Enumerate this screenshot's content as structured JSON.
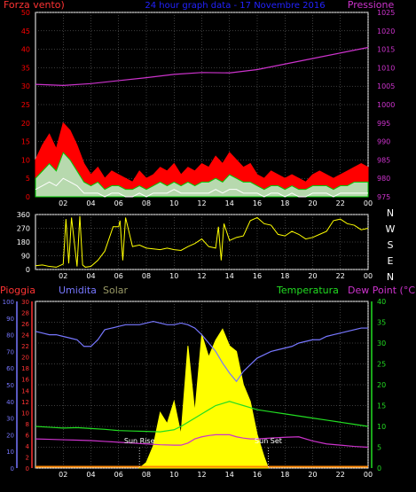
{
  "colors": {
    "background": "#000000",
    "frame": "#ffffff",
    "grid": "#7a7a7a",
    "wind_gust": "#ff0000",
    "wind_avg": "#00cc00",
    "wind_min": "#ffffff",
    "wind_scatter": "#aaffcc",
    "pressure": "#cc33cc",
    "direction": "#ffff00",
    "rain_axis": "#ff3333",
    "humidity": "#7777ff",
    "solar": "#ffff00",
    "temperature": "#22dd22",
    "dewpoint": "#cc33cc",
    "label_solar": "#999966",
    "title": "#2222ff"
  },
  "chart_data": [
    {
      "type": "line",
      "panel": "wind-pressure",
      "title": "24 hour graph data - 17 Novembre 2016",
      "left_axis_label": "Forza vento)",
      "right_axis_label": "Pressione",
      "left_ylim": [
        0,
        50
      ],
      "left_ticks": [
        "0",
        "5",
        "10",
        "15",
        "20",
        "25",
        "30",
        "35",
        "40",
        "45",
        "50"
      ],
      "right_ylim": [
        975,
        1025
      ],
      "right_ticks": [
        "975",
        "980",
        "985",
        "990",
        "995",
        "1000",
        "1005",
        "1010",
        "1015",
        "1020",
        "1025"
      ],
      "x_ticks": [
        "02",
        "04",
        "06",
        "08",
        "10",
        "12",
        "14",
        "16",
        "18",
        "20",
        "22",
        "00"
      ],
      "grid": true,
      "series": [
        {
          "name": "Pressione",
          "axis": "right",
          "x": [
            0,
            2,
            4,
            6,
            8,
            10,
            12,
            14,
            16,
            18,
            20,
            22,
            24
          ],
          "values": [
            1005.5,
            1005.2,
            1005.7,
            1006.5,
            1007.3,
            1008.2,
            1008.7,
            1008.6,
            1009.5,
            1011,
            1012.5,
            1014,
            1015.5
          ]
        },
        {
          "name": "",
          "axis": "left",
          "role": "gust",
          "x": [
            0,
            0.5,
            1,
            1.5,
            2,
            2.5,
            3,
            3.5,
            4,
            4.5,
            5,
            5.5,
            6,
            6.5,
            7,
            7.5,
            8,
            8.5,
            9,
            9.5,
            10,
            10.5,
            11,
            11.5,
            12,
            12.5,
            13,
            13.5,
            14,
            14.5,
            15,
            15.5,
            16,
            16.5,
            17,
            17.5,
            18,
            18.5,
            19,
            19.5,
            20,
            20.5,
            21,
            21.5,
            22,
            22.5,
            23,
            23.5,
            24
          ],
          "values": [
            10,
            14,
            17,
            13,
            20,
            18,
            14,
            9,
            6,
            8,
            5,
            7,
            6,
            5,
            4,
            7,
            5,
            6,
            8,
            7,
            9,
            6,
            8,
            7,
            9,
            8,
            11,
            9,
            12,
            10,
            8,
            9,
            6,
            5,
            7,
            6,
            5,
            6,
            5,
            4,
            6,
            7,
            6,
            5,
            6,
            7,
            8,
            9,
            8
          ]
        },
        {
          "name": "",
          "axis": "left",
          "role": "average",
          "x": [
            0,
            0.5,
            1,
            1.5,
            2,
            2.5,
            3,
            3.5,
            4,
            4.5,
            5,
            5.5,
            6,
            6.5,
            7,
            7.5,
            8,
            8.5,
            9,
            9.5,
            10,
            10.5,
            11,
            11.5,
            12,
            12.5,
            13,
            13.5,
            14,
            14.5,
            15,
            15.5,
            16,
            16.5,
            17,
            17.5,
            18,
            18.5,
            19,
            19.5,
            20,
            20.5,
            21,
            21.5,
            22,
            22.5,
            23,
            23.5,
            24
          ],
          "values": [
            5,
            7,
            9,
            7,
            12,
            10,
            7,
            4,
            3,
            4,
            2,
            3,
            3,
            2,
            2,
            3,
            2,
            3,
            4,
            3,
            4,
            3,
            4,
            3,
            4,
            4,
            5,
            4,
            6,
            5,
            4,
            4,
            3,
            2,
            3,
            3,
            2,
            3,
            2,
            2,
            3,
            3,
            3,
            2,
            3,
            3,
            4,
            4,
            4
          ]
        },
        {
          "name": "",
          "axis": "left",
          "role": "minimum",
          "x": [
            0,
            0.5,
            1,
            1.5,
            2,
            2.5,
            3,
            3.5,
            4,
            4.5,
            5,
            5.5,
            6,
            6.5,
            7,
            7.5,
            8,
            8.5,
            9,
            9.5,
            10,
            10.5,
            11,
            11.5,
            12,
            12.5,
            13,
            13.5,
            14,
            14.5,
            15,
            15.5,
            16,
            16.5,
            17,
            17.5,
            18,
            18.5,
            19,
            19.5,
            20,
            20.5,
            21,
            21.5,
            22,
            22.5,
            23,
            23.5,
            24
          ],
          "values": [
            2,
            3,
            4,
            3,
            5,
            4,
            3,
            1,
            1,
            1,
            0,
            1,
            1,
            0,
            0,
            1,
            0,
            1,
            1,
            1,
            2,
            1,
            1,
            1,
            1,
            1,
            2,
            1,
            2,
            2,
            1,
            1,
            1,
            0,
            1,
            1,
            0,
            1,
            0,
            0,
            1,
            1,
            1,
            0,
            1,
            1,
            1,
            1,
            1
          ]
        }
      ]
    },
    {
      "type": "line",
      "panel": "wind-direction",
      "ylim": [
        0,
        360
      ],
      "left_ticks": [
        "0",
        "90",
        "180",
        "270",
        "360"
      ],
      "right_labels": [
        "N",
        "W",
        "S",
        "E",
        "N"
      ],
      "x_ticks": [
        "02",
        "04",
        "06",
        "08",
        "10",
        "12",
        "14",
        "16",
        "18",
        "20",
        "22",
        "00"
      ],
      "grid": true,
      "series": [
        {
          "name": "",
          "x": [
            0,
            0.5,
            1,
            1.5,
            2,
            2.2,
            2.4,
            2.6,
            3,
            3.2,
            3.4,
            3.6,
            4,
            4.5,
            5,
            5.3,
            5.6,
            6,
            6.1,
            6.3,
            6.5,
            7,
            7.5,
            8,
            8.5,
            9,
            9.5,
            10,
            10.5,
            11,
            11.5,
            12,
            12.5,
            13,
            13.2,
            13.4,
            13.6,
            14,
            14.5,
            15,
            15.5,
            16,
            16.5,
            17,
            17.5,
            18,
            18.5,
            19,
            19.5,
            20,
            20.5,
            21,
            21.5,
            22,
            22.5,
            23,
            23.5,
            24
          ],
          "values": [
            25,
            30,
            20,
            15,
            35,
            330,
            40,
            340,
            20,
            350,
            30,
            15,
            20,
            60,
            120,
            200,
            280,
            280,
            320,
            60,
            340,
            150,
            160,
            140,
            135,
            130,
            140,
            130,
            125,
            150,
            170,
            200,
            150,
            140,
            280,
            60,
            300,
            190,
            210,
            220,
            320,
            340,
            300,
            290,
            230,
            220,
            250,
            230,
            200,
            210,
            230,
            250,
            320,
            330,
            300,
            290,
            260,
            270
          ]
        }
      ]
    },
    {
      "type": "line",
      "panel": "rain-humidity-solar-temperature",
      "labels": [
        "Pioggia",
        "Umidita",
        "Solar",
        "Temperatura",
        "Dew Point (°C)"
      ],
      "humidity_ylim": [
        0,
        100
      ],
      "humidity_ticks": [
        "0",
        "10",
        "20",
        "30",
        "40",
        "50",
        "60",
        "70",
        "80",
        "90",
        "100"
      ],
      "rain_ylim": [
        0,
        30
      ],
      "rain_ticks": [
        "0",
        "2",
        "4",
        "6",
        "8",
        "10",
        "12",
        "14",
        "16",
        "18",
        "20",
        "22",
        "24",
        "26",
        "28",
        "30"
      ],
      "temperature_ylim": [
        0,
        40
      ],
      "temperature_ticks": [
        "0",
        "5",
        "10",
        "15",
        "20",
        "25",
        "30",
        "35",
        "40"
      ],
      "x_ticks": [
        "02",
        "04",
        "06",
        "08",
        "10",
        "12",
        "14",
        "16",
        "18",
        "20",
        "22",
        "00"
      ],
      "annotations": [
        {
          "text": "Sun Rise",
          "x": 7.5
        },
        {
          "text": "Sun Set",
          "x": 16.8
        }
      ],
      "grid": true,
      "series": [
        {
          "name": "Umidita",
          "axis": "humidity",
          "x": [
            0,
            0.5,
            1,
            1.5,
            2,
            2.5,
            3,
            3.5,
            4,
            4.5,
            5,
            5.5,
            6,
            6.5,
            7,
            7.5,
            8,
            8.5,
            9,
            9.5,
            10,
            10.5,
            11,
            11.5,
            12,
            12.5,
            13,
            13.5,
            14,
            14.5,
            15,
            15.5,
            16,
            16.5,
            17,
            17.5,
            18,
            18.5,
            19,
            19.5,
            20,
            20.5,
            21,
            21.5,
            22,
            22.5,
            23,
            23.5,
            24
          ],
          "values": [
            82,
            81,
            80,
            80,
            79,
            78,
            77,
            73,
            73,
            77,
            83,
            84,
            85,
            86,
            86,
            86,
            87,
            88,
            87,
            86,
            86,
            87,
            86,
            84,
            80,
            75,
            70,
            63,
            57,
            52,
            58,
            62,
            66,
            68,
            70,
            71,
            72,
            73,
            75,
            76,
            77,
            77,
            79,
            80,
            81,
            82,
            83,
            84,
            84
          ]
        },
        {
          "name": "Temperatura",
          "axis": "temperature",
          "x": [
            0,
            1,
            2,
            3,
            4,
            5,
            6,
            7,
            8,
            9,
            10,
            10.5,
            11,
            11.5,
            12,
            12.5,
            13,
            13.5,
            14,
            14.5,
            15,
            15.5,
            16,
            17,
            18,
            19,
            20,
            21,
            22,
            23,
            24
          ],
          "values": [
            10,
            9.8,
            9.6,
            9.7,
            9.5,
            9.3,
            9,
            8.9,
            8.8,
            8.7,
            9.2,
            10,
            11,
            12,
            13,
            14,
            15,
            15.5,
            16,
            15.5,
            15,
            14.5,
            14,
            13.5,
            13,
            12.5,
            12,
            11.5,
            11,
            10.5,
            10
          ]
        },
        {
          "name": "Dew Point (°C)",
          "axis": "temperature",
          "x": [
            0,
            1,
            2,
            3,
            4,
            5,
            6,
            7,
            8,
            9,
            10,
            10.5,
            11,
            11.5,
            12,
            12.5,
            13,
            13.5,
            14,
            14.5,
            15,
            15.5,
            16,
            17,
            18,
            19,
            20,
            21,
            22,
            23,
            24
          ],
          "values": [
            7,
            6.9,
            6.8,
            6.7,
            6.6,
            6.4,
            6.2,
            6,
            5.8,
            5.6,
            5.5,
            5.5,
            6,
            7,
            7.5,
            7.8,
            8,
            8,
            8,
            7.5,
            7.2,
            7,
            7,
            7.2,
            7.4,
            7.5,
            6.5,
            5.8,
            5.5,
            5.2,
            5
          ]
        },
        {
          "name": "Solar",
          "axis": "solar",
          "x": [
            7.5,
            8,
            8.5,
            9,
            9.5,
            10,
            10.5,
            11,
            11.5,
            12,
            12.5,
            13,
            13.5,
            14,
            14.5,
            15,
            15.5,
            16,
            16.5,
            16.8
          ],
          "values": [
            0,
            1,
            4,
            10,
            8,
            12,
            6,
            22,
            10,
            24,
            20,
            23,
            25,
            22,
            21,
            15,
            12,
            6,
            2,
            0
          ]
        }
      ]
    }
  ]
}
